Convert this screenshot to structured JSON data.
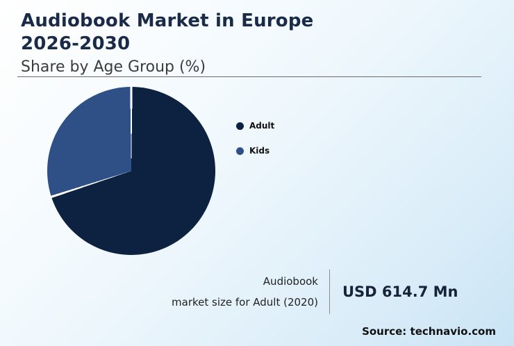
{
  "header": {
    "title_line1": "Audiobook Market in Europe",
    "title_line2": "2026-2030",
    "subtitle": "Share by Age Group (%)"
  },
  "chart_data": {
    "type": "pie",
    "title": "Audiobook Market in Europe 2026-2030 — Share by Age Group (%)",
    "categories": [
      "Adult",
      "Kids"
    ],
    "values": [
      70,
      30
    ],
    "series": [
      {
        "name": "Adult",
        "value": 70,
        "color": "#0d2240"
      },
      {
        "name": "Kids",
        "value": 30,
        "color": "#2f4f87"
      }
    ],
    "legend_position": "right",
    "start_angle_deg": 0,
    "direction": "clockwise",
    "slice_separator_color": "#ffffff"
  },
  "stat": {
    "label_line1": "Audiobook",
    "label_line2": "market size for Adult (2020)",
    "value": "USD 614.7 Mn"
  },
  "source": "Source: technavio.com",
  "colors": {
    "title_text": "#1a2b49",
    "adult_slice": "#0d2240",
    "kids_slice": "#2f4f87",
    "background_light_blue": "#c9e4f5"
  }
}
